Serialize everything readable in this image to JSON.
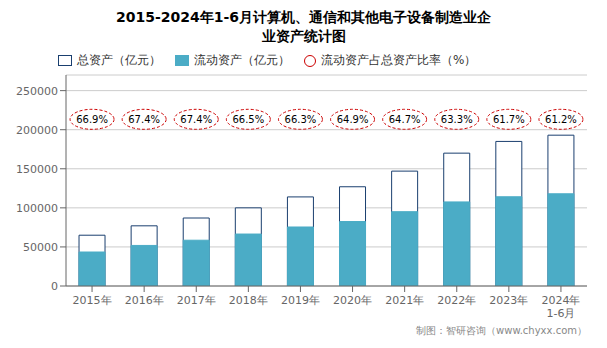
{
  "chart_data": {
    "type": "bar",
    "title": "2015-2024年1-6月计算机、通信和其他电子设备制造业企\n业资产统计图",
    "categories": [
      "2015年",
      "2016年",
      "2017年",
      "2018年",
      "2019年",
      "2020年",
      "2021年",
      "2022年",
      "2023年",
      "2024年\n1-6月"
    ],
    "series": [
      {
        "name": "总资产（亿元）",
        "type": "bar",
        "color": "#FFFFFF",
        "values": [
          65000,
          77000,
          87000,
          100000,
          114000,
          127000,
          147000,
          170000,
          185000,
          193000
        ]
      },
      {
        "name": "流动资产（亿元）",
        "type": "bar",
        "color": "#4BACC6",
        "values": [
          43500,
          51900,
          58600,
          66500,
          75500,
          82500,
          95100,
          107600,
          114200,
          118000
        ]
      },
      {
        "name": "流动资产占总资产比率（%）",
        "type": "label",
        "color": "#CC0000",
        "marker": "ellipse",
        "line_style": "dashed",
        "values": [
          66.9,
          67.4,
          67.4,
          66.5,
          66.3,
          64.9,
          64.7,
          63.3,
          61.7,
          61.2
        ],
        "value_labels": [
          "66.9%",
          "67.4%",
          "67.4%",
          "66.5%",
          "66.3%",
          "64.9%",
          "64.7%",
          "63.3%",
          "61.7%",
          "61.2%"
        ]
      }
    ],
    "ylim": [
      0,
      270000
    ],
    "yticks": [
      0,
      50000,
      100000,
      150000,
      200000,
      250000
    ],
    "grid": true,
    "legend": "top left",
    "footer": "制图：智研咨询（www.chyxx.com）"
  }
}
